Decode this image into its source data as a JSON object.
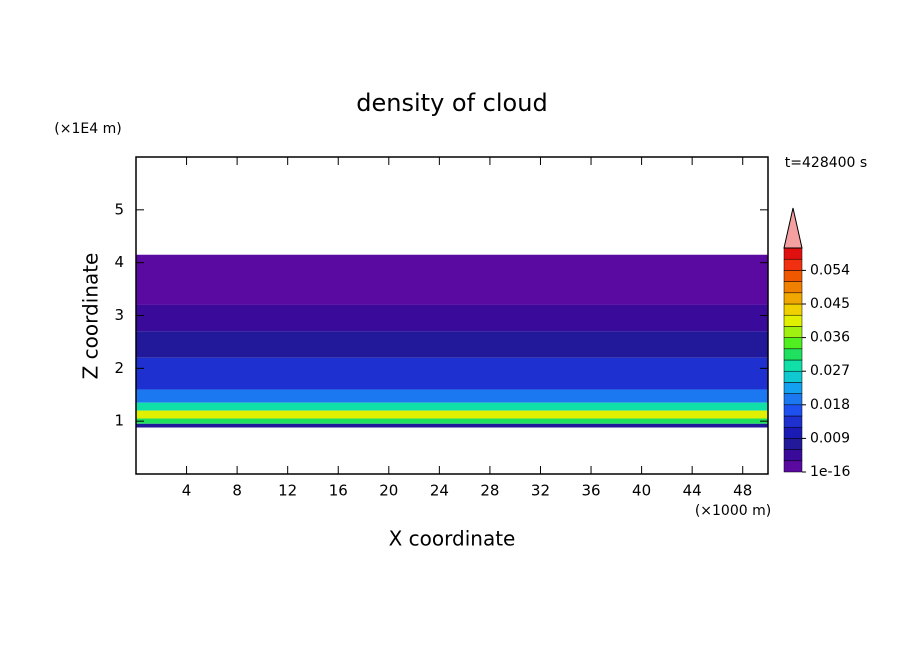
{
  "chart_data": {
    "type": "contour",
    "title": "density of cloud",
    "xlabel": "X coordinate",
    "ylabel": "Z coordinate",
    "x_unit": "(×1000 m)",
    "y_unit": "(×1E4 m)",
    "annotation": "t=428400 s",
    "xlim": [
      0,
      50
    ],
    "xticks": [
      4,
      8,
      12,
      16,
      20,
      24,
      28,
      32,
      36,
      40,
      44,
      48
    ],
    "ylim": [
      0,
      6
    ],
    "yticks": [
      1,
      2,
      3,
      4,
      5
    ],
    "layers": [
      {
        "z": [
          3.2,
          4.15
        ],
        "value": 0.001
      },
      {
        "z": [
          2.7,
          3.2
        ],
        "value": 0.004
      },
      {
        "z": [
          2.2,
          2.7
        ],
        "value": 0.007
      },
      {
        "z": [
          1.6,
          2.2
        ],
        "value": 0.013
      },
      {
        "z": [
          1.35,
          1.6
        ],
        "value": 0.02
      },
      {
        "z": [
          1.2,
          1.35
        ],
        "value": 0.028
      },
      {
        "z": [
          1.05,
          1.2
        ],
        "value": 0.04
      },
      {
        "z": [
          0.95,
          1.05
        ],
        "value": 0.031
      },
      {
        "z": [
          0.88,
          0.95
        ],
        "value": 0.007
      }
    ],
    "colorbar": {
      "levels": [
        0,
        0.003,
        0.006,
        0.009,
        0.012,
        0.015,
        0.018,
        0.021,
        0.024,
        0.027,
        0.03,
        0.033,
        0.036,
        0.039,
        0.042,
        0.045,
        0.048,
        0.051,
        0.054,
        0.057,
        0.06
      ],
      "colors": [
        "#5a0aa0",
        "#3a0a9a",
        "#22189a",
        "#1a1ab4",
        "#1e30d0",
        "#1e50f0",
        "#1c78f0",
        "#14a0f0",
        "#10c8d0",
        "#10e0a8",
        "#20e060",
        "#50f020",
        "#a0f010",
        "#e0f000",
        "#f0d000",
        "#f0a800",
        "#f08000",
        "#f05800",
        "#f03010",
        "#e01010"
      ],
      "extend_color": "#f4a0a0",
      "ticks": [
        {
          "value": 1e-16,
          "label": "1e-16"
        },
        0.009,
        0.018,
        0.027,
        0.036,
        0.045,
        0.054
      ]
    }
  }
}
